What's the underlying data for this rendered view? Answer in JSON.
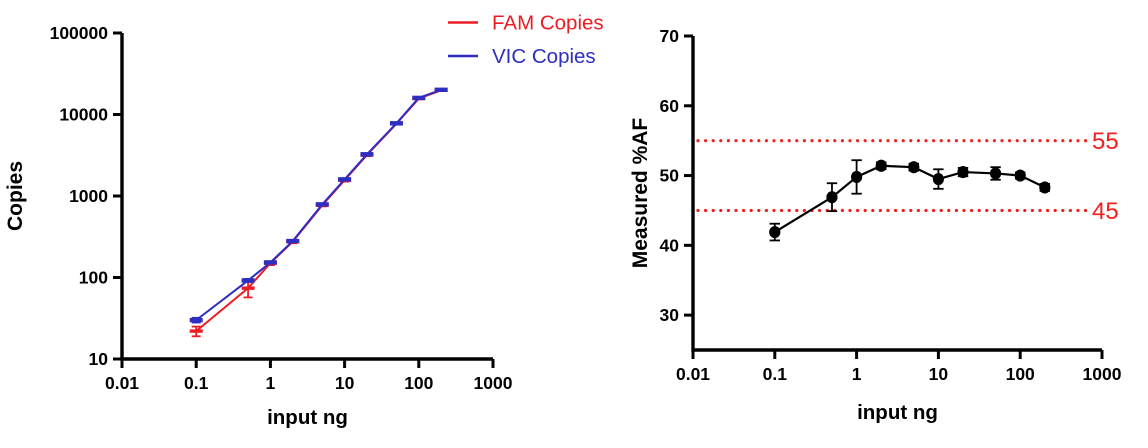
{
  "figure": {
    "background": "#ffffff",
    "description_labels": {
      "left_xlabel": "input ng",
      "left_ylabel": "Copies",
      "right_xlabel": "input ng",
      "right_ylabel": "Measured %AF"
    }
  },
  "colors": {
    "fam_red": "#EC1D24",
    "vic_blue": "#2E2EC0",
    "ref_red": "#F1201E",
    "series_black": "#000000",
    "axis_black": "#000000"
  },
  "chart_data": [
    {
      "id": "copies-vs-input-chart",
      "type": "line",
      "title": "",
      "xlabel": "input ng",
      "ylabel": "Copies",
      "x_scale": "log",
      "y_scale": "log",
      "xlim": [
        0.01,
        1000
      ],
      "ylim": [
        10,
        100000
      ],
      "x_ticks": [
        0.01,
        0.1,
        1,
        10,
        100,
        1000
      ],
      "x_tick_labels": [
        "0.01",
        "0.1",
        "1",
        "10",
        "100",
        "1000"
      ],
      "y_ticks": [
        10,
        100,
        1000,
        10000,
        100000
      ],
      "y_tick_labels": [
        "10",
        "100",
        "1000",
        "10000",
        "100000"
      ],
      "grid": false,
      "x": [
        0.1,
        0.5,
        1,
        2,
        5,
        10,
        20,
        50,
        100,
        200
      ],
      "series": [
        {
          "name": "FAM Copies",
          "color": "#EC1D24",
          "marker": "dash",
          "values": [
            22,
            74,
            150,
            275,
            770,
            1560,
            3180,
            7700,
            15700,
            19800
          ],
          "errors": [
            3,
            17,
            8,
            12,
            25,
            60,
            100,
            200,
            350,
            400
          ]
        },
        {
          "name": "VIC Copies",
          "color": "#2E2EC0",
          "marker": "dash",
          "values": [
            30,
            92,
            153,
            280,
            790,
            1600,
            3250,
            7800,
            16000,
            20100
          ],
          "errors": [
            2,
            4,
            5,
            8,
            20,
            50,
            80,
            150,
            300,
            350
          ]
        }
      ],
      "legend": {
        "position": "top-right",
        "entries": [
          "FAM Copies",
          "VIC Copies"
        ]
      }
    },
    {
      "id": "measured-af-vs-input-chart",
      "type": "line",
      "title": "",
      "xlabel": "input ng",
      "ylabel": "Measured %AF",
      "x_scale": "log",
      "y_scale": "linear",
      "xlim": [
        0.01,
        1000
      ],
      "ylim": [
        25,
        70
      ],
      "x_ticks": [
        0.01,
        0.1,
        1,
        10,
        100,
        1000
      ],
      "x_tick_labels": [
        "0.01",
        "0.1",
        "1",
        "10",
        "100",
        "1000"
      ],
      "y_ticks": [
        30,
        40,
        50,
        60,
        70
      ],
      "y_tick_labels": [
        "30",
        "40",
        "50",
        "60",
        "70"
      ],
      "grid": false,
      "x": [
        0.1,
        0.5,
        1,
        2,
        5,
        10,
        20,
        50,
        100,
        200
      ],
      "series": [
        {
          "name": "Measured %AF",
          "color": "#000000",
          "marker": "circle",
          "values": [
            41.9,
            46.9,
            49.8,
            51.4,
            51.2,
            49.5,
            50.5,
            50.3,
            50.0,
            48.3
          ],
          "errors": [
            1.2,
            2.0,
            2.4,
            0.5,
            0.5,
            1.4,
            0.6,
            0.9,
            0.45,
            0.5
          ]
        }
      ],
      "reference_lines": [
        {
          "value": 55,
          "label": "55",
          "color": "#F1201E",
          "style": "dotted"
        },
        {
          "value": 45,
          "label": "45",
          "color": "#F1201E",
          "style": "dotted"
        }
      ],
      "legend": null
    }
  ]
}
